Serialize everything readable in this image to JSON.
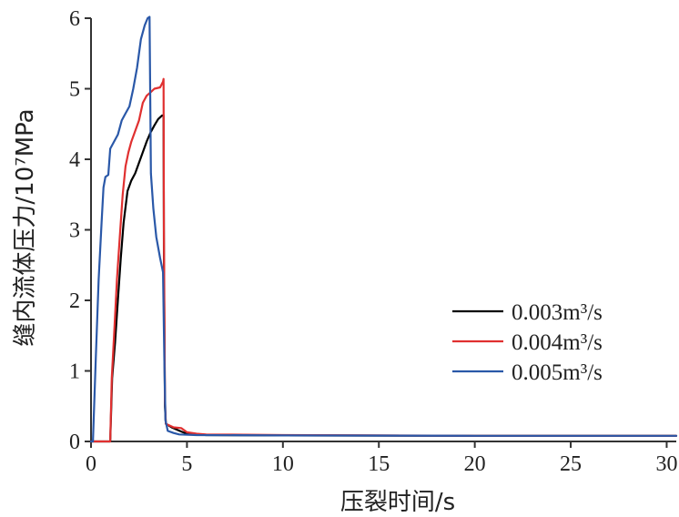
{
  "chart_data": {
    "type": "line",
    "title": "",
    "xlabel": "压裂时间/s",
    "ylabel": "缝内流体压力/10⁷MPa",
    "xlim": [
      0,
      30.5
    ],
    "ylim": [
      0,
      6
    ],
    "x_ticks": [
      0,
      5,
      10,
      15,
      20,
      25,
      30
    ],
    "y_ticks": [
      0,
      1,
      2,
      3,
      4,
      5,
      6
    ],
    "grid": false,
    "legend_position": "right",
    "series": [
      {
        "name": "0.003m³/s",
        "color": "#000000",
        "points": [
          [
            0,
            0
          ],
          [
            1.0,
            0
          ],
          [
            1.1,
            0.9
          ],
          [
            1.25,
            1.4
          ],
          [
            1.4,
            2.0
          ],
          [
            1.55,
            2.6
          ],
          [
            1.7,
            3.1
          ],
          [
            1.9,
            3.55
          ],
          [
            2.1,
            3.7
          ],
          [
            2.3,
            3.8
          ],
          [
            2.5,
            3.95
          ],
          [
            2.7,
            4.1
          ],
          [
            2.9,
            4.25
          ],
          [
            3.1,
            4.38
          ],
          [
            3.3,
            4.48
          ],
          [
            3.5,
            4.57
          ],
          [
            3.7,
            4.62
          ],
          [
            3.78,
            4.62
          ],
          [
            3.8,
            2.6
          ],
          [
            3.85,
            0.5
          ],
          [
            3.9,
            0.25
          ],
          [
            4.2,
            0.2
          ],
          [
            4.7,
            0.14
          ],
          [
            5.0,
            0.11
          ],
          [
            6,
            0.09
          ],
          [
            10,
            0.085
          ],
          [
            20,
            0.08
          ],
          [
            30.5,
            0.08
          ]
        ]
      },
      {
        "name": "0.004m³/s",
        "color": "#e03030",
        "points": [
          [
            0,
            0
          ],
          [
            1.0,
            0
          ],
          [
            1.08,
            0.9
          ],
          [
            1.2,
            1.5
          ],
          [
            1.35,
            2.3
          ],
          [
            1.5,
            2.9
          ],
          [
            1.65,
            3.5
          ],
          [
            1.8,
            3.9
          ],
          [
            1.95,
            4.1
          ],
          [
            2.1,
            4.25
          ],
          [
            2.3,
            4.4
          ],
          [
            2.5,
            4.55
          ],
          [
            2.7,
            4.8
          ],
          [
            2.9,
            4.9
          ],
          [
            3.1,
            4.95
          ],
          [
            3.3,
            5.0
          ],
          [
            3.6,
            5.02
          ],
          [
            3.75,
            5.1
          ],
          [
            3.78,
            5.14
          ],
          [
            3.8,
            3.0
          ],
          [
            3.85,
            0.6
          ],
          [
            3.9,
            0.25
          ],
          [
            4.3,
            0.2
          ],
          [
            4.7,
            0.19
          ],
          [
            5.0,
            0.13
          ],
          [
            5.5,
            0.11
          ],
          [
            6,
            0.1
          ],
          [
            10,
            0.09
          ],
          [
            20,
            0.08
          ],
          [
            30.5,
            0.08
          ]
        ]
      },
      {
        "name": "0.005m³/s",
        "color": "#2a58a8",
        "points": [
          [
            0,
            0
          ],
          [
            0.1,
            0
          ],
          [
            0.25,
            1.2
          ],
          [
            0.4,
            2.3
          ],
          [
            0.55,
            3.1
          ],
          [
            0.65,
            3.6
          ],
          [
            0.75,
            3.75
          ],
          [
            0.9,
            3.78
          ],
          [
            1.0,
            4.15
          ],
          [
            1.2,
            4.25
          ],
          [
            1.4,
            4.35
          ],
          [
            1.6,
            4.55
          ],
          [
            1.8,
            4.65
          ],
          [
            2.0,
            4.75
          ],
          [
            2.2,
            5.0
          ],
          [
            2.4,
            5.3
          ],
          [
            2.6,
            5.7
          ],
          [
            2.8,
            5.9
          ],
          [
            2.95,
            6.0
          ],
          [
            3.05,
            6.02
          ],
          [
            3.12,
            3.8
          ],
          [
            3.25,
            3.3
          ],
          [
            3.4,
            2.9
          ],
          [
            3.6,
            2.6
          ],
          [
            3.75,
            2.4
          ],
          [
            3.82,
            1.2
          ],
          [
            3.88,
            0.3
          ],
          [
            4.0,
            0.15
          ],
          [
            4.3,
            0.12
          ],
          [
            4.6,
            0.1
          ],
          [
            5.5,
            0.09
          ],
          [
            10,
            0.085
          ],
          [
            20,
            0.08
          ],
          [
            30.5,
            0.08
          ]
        ]
      }
    ]
  }
}
